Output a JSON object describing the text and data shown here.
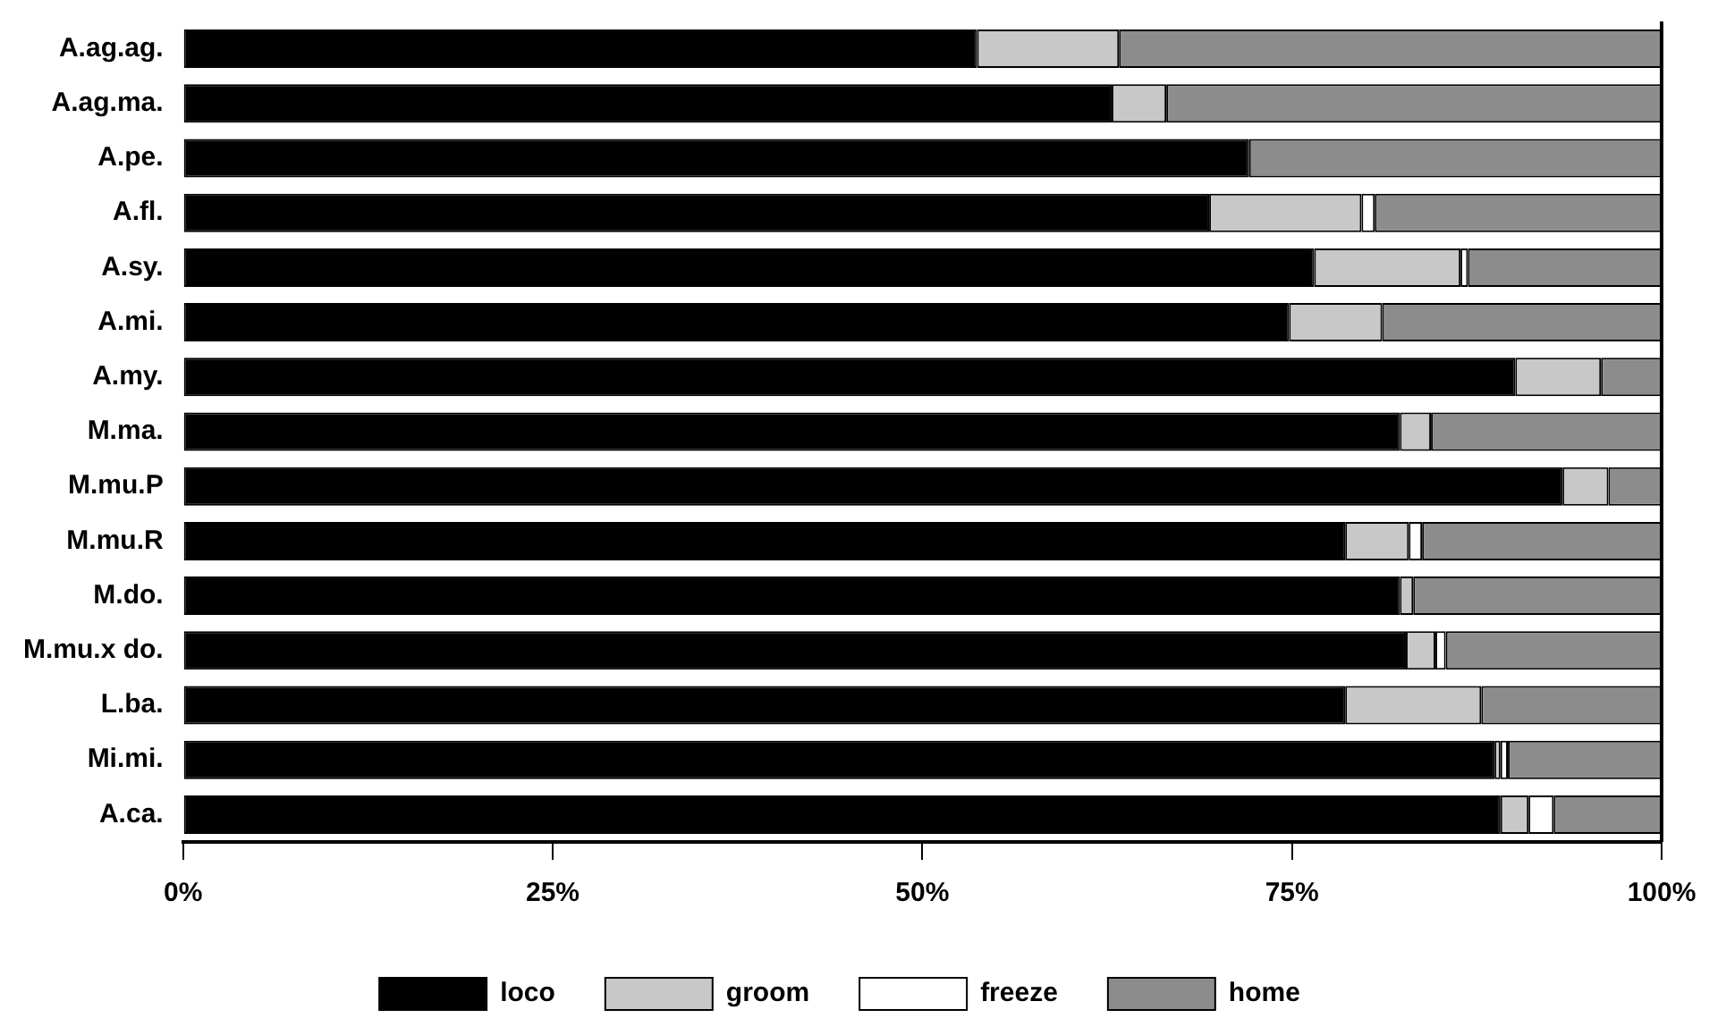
{
  "chart_data": {
    "type": "bar",
    "orientation": "horizontal",
    "stacked": true,
    "categories": [
      "A.ag.ag.",
      "A.ag.ma.",
      "A.pe.",
      "A.fl.",
      "A.sy.",
      "A.mi.",
      "A.my.",
      "M.ma.",
      "M.mu.P",
      "M.mu.R",
      "M.do.",
      "M.mu.x do.",
      "L.ba.",
      "Mi.mi.",
      "A.ca."
    ],
    "series": [
      {
        "name": "loco",
        "color": "#000000",
        "values": [
          53.7,
          62.8,
          72.1,
          69.4,
          76.5,
          74.8,
          90.1,
          82.3,
          93.3,
          78.6,
          82.3,
          82.7,
          78.6,
          88.7,
          89.1
        ]
      },
      {
        "name": "groom",
        "color": "#c8c8c8",
        "values": [
          9.6,
          3.7,
          0,
          10.3,
          9.9,
          6.3,
          5.8,
          2.1,
          3.1,
          4.3,
          0.9,
          2.0,
          9.2,
          0.4,
          1.9
        ]
      },
      {
        "name": "freeze",
        "color": "#ffffff",
        "values": [
          0,
          0,
          0,
          0.9,
          0.5,
          0,
          0,
          0,
          0,
          0.9,
          0,
          0.7,
          0,
          0.5,
          1.7
        ]
      },
      {
        "name": "home",
        "color": "#8c8c8c",
        "values": [
          36.7,
          33.5,
          27.9,
          19.4,
          13.1,
          18.9,
          4.1,
          15.6,
          3.6,
          16.2,
          16.8,
          14.6,
          12.2,
          10.4,
          7.3
        ]
      }
    ],
    "xlim": [
      0,
      100
    ],
    "xticks": [
      {
        "value": 0,
        "label": "0%"
      },
      {
        "value": 25,
        "label": "25%"
      },
      {
        "value": 50,
        "label": "50%"
      },
      {
        "value": 75,
        "label": "75%"
      },
      {
        "value": 100,
        "label": "100%"
      }
    ],
    "grid": false,
    "legend": "bottom"
  }
}
